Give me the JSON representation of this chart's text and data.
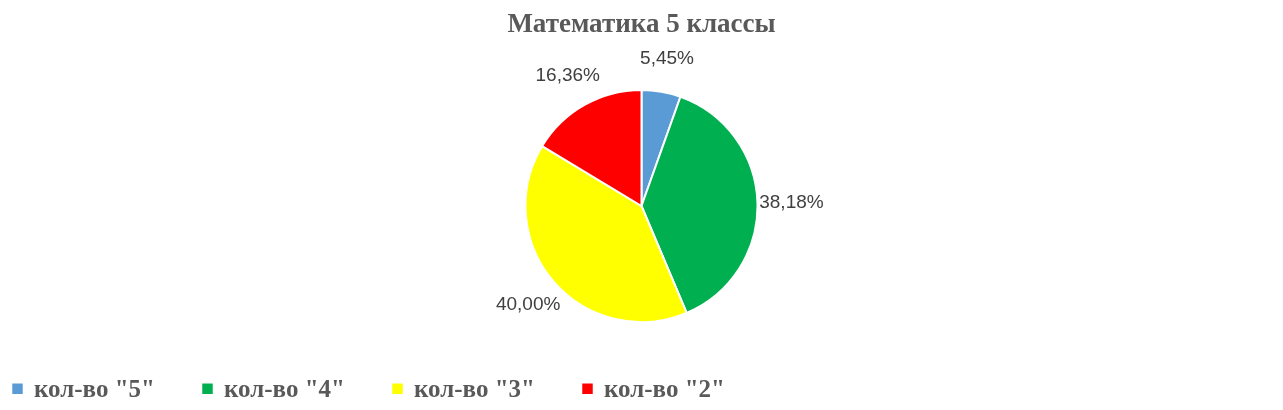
{
  "chart_data": {
    "type": "pie",
    "title": "Математика  5 классы",
    "categories": [
      "кол-во \"5\"",
      "кол-во \"4\"",
      "кол-во \"3\"",
      "кол-во \"2\""
    ],
    "values": [
      5.45,
      38.18,
      40.0,
      16.36
    ],
    "colors": [
      "#5b9bd5",
      "#00b050",
      "#ffff00",
      "#ff0000"
    ],
    "value_labels": [
      "5,45%",
      "38,18%",
      "40,00%",
      "16,36%"
    ],
    "legend": "bottom"
  }
}
